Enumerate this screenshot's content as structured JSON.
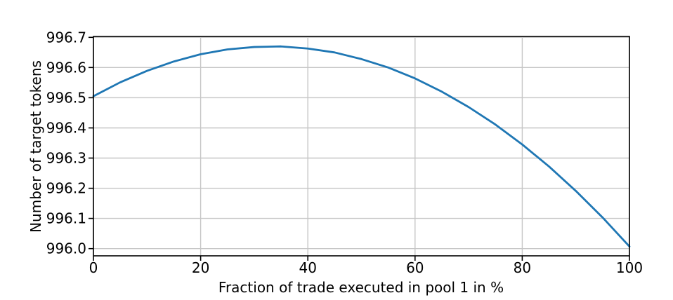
{
  "chart_data": {
    "type": "line",
    "title": "",
    "xlabel": "Fraction of trade executed in pool 1 in %",
    "ylabel": "Number of target tokens",
    "xlim": [
      0,
      100
    ],
    "ylim": [
      995.976,
      996.703
    ],
    "grid": true,
    "legend": "none",
    "xticks": {
      "values": [
        0,
        20,
        40,
        60,
        80,
        100
      ],
      "labels": [
        "0",
        "20",
        "40",
        "60",
        "80",
        "100"
      ]
    },
    "yticks": {
      "values": [
        996.0,
        996.1,
        996.2,
        996.3,
        996.4,
        996.5,
        996.6,
        996.7
      ],
      "labels": [
        "996.0",
        "996.1",
        "996.2",
        "996.3",
        "996.4",
        "996.5",
        "996.6",
        "996.7"
      ]
    },
    "colors": {
      "line": "#1f77b4",
      "grid": "#c6c6c6",
      "spine": "#000000",
      "text": "#000000",
      "background": "#ffffff"
    },
    "series": [
      {
        "name": "Number of target tokens",
        "x": [
          0,
          5,
          10,
          15,
          20,
          25,
          30,
          35,
          40,
          45,
          50,
          55,
          60,
          65,
          70,
          75,
          80,
          85,
          90,
          95,
          100
        ],
        "y": [
          996.505,
          996.551,
          996.589,
          996.62,
          996.644,
          996.66,
          996.668,
          996.67,
          996.663,
          996.65,
          996.628,
          996.6,
          996.564,
          996.52,
          996.469,
          996.411,
          996.345,
          996.272,
          996.191,
          996.103,
          996.007
        ]
      }
    ]
  }
}
